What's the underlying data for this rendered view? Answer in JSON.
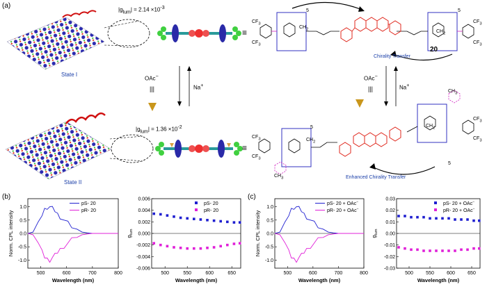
{
  "panels": {
    "a": "(a)",
    "b": "(b)",
    "c": "(c)"
  },
  "panel_a": {
    "state1_label": "State I",
    "state2_label": "State II",
    "g1_label": "|g",
    "g1_sub": "lum",
    "g1_value": "| = 2.14 ×10",
    "g1_exp": "-3",
    "g2_label": "|g",
    "g2_sub": "lum",
    "g2_value": "| = 1.36 ×10",
    "g2_exp": "-2",
    "oac_left": "OAc",
    "na_left": "Na",
    "oac_right": "OAc",
    "na_right": "Na",
    "equiv": "≡",
    "chirality_transfer": "Chirality Transfer",
    "enhanced_chirality_transfer": "Enhanced Chirality Transfer",
    "compound_number": "20",
    "ch2": "CH",
    "cf3": "CF",
    "ch3": "CH",
    "five": "5"
  },
  "chart_data": [
    {
      "type": "line",
      "xlabel": "Wavelength (nm)",
      "ylabel": "Norm. CPL intensity",
      "xlim": [
        450,
        800
      ],
      "ylim": [
        -1.3,
        1.3
      ],
      "xticks": [
        500,
        600,
        700,
        800
      ],
      "yticks": [
        -1.0,
        -0.5,
        0.0,
        0.5,
        1.0
      ],
      "ytick_labels": [
        "-1.0",
        "-0.5",
        "0.0",
        "0.5",
        "1.0"
      ],
      "legend": "top-right",
      "series": [
        {
          "name": "pS- 20",
          "color": "#1f1fd0",
          "x": [
            450,
            470,
            490,
            505,
            515,
            525,
            535,
            545,
            555,
            565,
            575,
            590,
            605,
            620,
            640,
            660,
            680,
            700,
            720,
            800
          ],
          "y": [
            0,
            0.05,
            0.35,
            0.7,
            0.9,
            0.98,
            1.0,
            0.93,
            0.85,
            0.72,
            0.62,
            0.5,
            0.38,
            0.25,
            0.12,
            0.05,
            0.02,
            0,
            0,
            0
          ]
        },
        {
          "name": "pR- 20",
          "color": "#e020d8",
          "x": [
            450,
            470,
            490,
            505,
            515,
            525,
            535,
            545,
            555,
            565,
            575,
            590,
            605,
            620,
            640,
            660,
            680,
            700,
            720,
            800
          ],
          "y": [
            0,
            -0.05,
            -0.35,
            -0.7,
            -0.88,
            -0.96,
            -1.0,
            -0.9,
            -0.82,
            -0.7,
            -0.6,
            -0.48,
            -0.36,
            -0.24,
            -0.11,
            -0.05,
            -0.02,
            0,
            0,
            0
          ]
        }
      ]
    },
    {
      "type": "scatter",
      "xlabel": "Wavelength (nm)",
      "ylabel": "g",
      "ylabel_sub": "lum",
      "xlim": [
        470,
        670
      ],
      "ylim": [
        -0.006,
        0.006
      ],
      "xticks": [
        500,
        550,
        600,
        650
      ],
      "yticks": [
        -0.006,
        -0.004,
        -0.002,
        0.0,
        0.002,
        0.004,
        0.006
      ],
      "ytick_labels": [
        "-0.006",
        "-0.004",
        "-0.002",
        "0.000",
        "0.002",
        "0.004",
        "0.006"
      ],
      "legend": "top-right",
      "series": [
        {
          "name": "pS- 20",
          "color": "#1f1fd0",
          "x": [
            475,
            490,
            505,
            520,
            535,
            550,
            565,
            580,
            595,
            610,
            625,
            640,
            655,
            668
          ],
          "y": [
            0.0034,
            0.0033,
            0.0031,
            0.0029,
            0.0027,
            0.0026,
            0.0025,
            0.0024,
            0.0023,
            0.0022,
            0.0021,
            0.002,
            0.0019,
            0.0019
          ]
        },
        {
          "name": "pR- 20",
          "color": "#e020d8",
          "x": [
            475,
            490,
            505,
            520,
            535,
            550,
            565,
            580,
            595,
            610,
            625,
            640,
            655,
            668
          ],
          "y": [
            -0.0017,
            -0.002,
            -0.0022,
            -0.0024,
            -0.0025,
            -0.0026,
            -0.0026,
            -0.0026,
            -0.0025,
            -0.0024,
            -0.0022,
            -0.002,
            -0.0018,
            -0.0017
          ]
        }
      ]
    },
    {
      "type": "line",
      "xlabel": "Wavelength (nm)",
      "ylabel": "Norm. CPL intensity",
      "xlim": [
        450,
        800
      ],
      "ylim": [
        -1.3,
        1.3
      ],
      "xticks": [
        500,
        600,
        700,
        800
      ],
      "yticks": [
        -1.0,
        -0.5,
        0.0,
        0.5,
        1.0
      ],
      "ytick_labels": [
        "-1.0",
        "-0.5",
        "0.0",
        "0.5",
        "1.0"
      ],
      "legend": "top-right",
      "series": [
        {
          "name": "pS- 20 + OAc",
          "color": "#1f1fd0",
          "x": [
            450,
            470,
            490,
            505,
            515,
            525,
            535,
            545,
            555,
            565,
            575,
            590,
            605,
            620,
            640,
            660,
            680,
            700,
            720,
            800
          ],
          "y": [
            0,
            0.05,
            0.35,
            0.7,
            0.9,
            0.98,
            1.0,
            0.93,
            0.85,
            0.72,
            0.62,
            0.5,
            0.38,
            0.25,
            0.12,
            0.05,
            0.02,
            0,
            0,
            0
          ]
        },
        {
          "name": "pR- 20 + OAc",
          "color": "#e020d8",
          "x": [
            450,
            470,
            490,
            505,
            515,
            525,
            535,
            545,
            555,
            565,
            575,
            590,
            605,
            620,
            640,
            660,
            680,
            700,
            720,
            800
          ],
          "y": [
            0,
            -0.05,
            -0.35,
            -0.7,
            -0.88,
            -0.96,
            -1.0,
            -0.9,
            -0.82,
            -0.7,
            -0.6,
            -0.48,
            -0.36,
            -0.24,
            -0.11,
            -0.05,
            -0.02,
            0,
            0,
            0
          ]
        }
      ]
    },
    {
      "type": "scatter",
      "xlabel": "Wavelength (nm)",
      "ylabel": "g",
      "ylabel_sub": "lum",
      "xlim": [
        470,
        670
      ],
      "ylim": [
        -0.03,
        0.03
      ],
      "xticks": [
        500,
        550,
        600,
        650
      ],
      "yticks": [
        -0.03,
        -0.02,
        -0.01,
        0.0,
        0.01,
        0.02,
        0.03
      ],
      "ytick_labels": [
        "-0.03",
        "-0.02",
        "-0.01",
        "0.00",
        "0.01",
        "0.02",
        "0.03"
      ],
      "legend": "top-right",
      "series": [
        {
          "name": "pS- 20 + OAc",
          "color": "#1f1fd0",
          "x": [
            475,
            490,
            505,
            520,
            535,
            550,
            565,
            580,
            595,
            610,
            625,
            640,
            655,
            668
          ],
          "y": [
            0.015,
            0.015,
            0.014,
            0.014,
            0.014,
            0.013,
            0.013,
            0.013,
            0.013,
            0.012,
            0.012,
            0.012,
            0.011,
            0.011
          ]
        },
        {
          "name": "pR- 20 + OAc",
          "color": "#e020d8",
          "x": [
            475,
            490,
            505,
            520,
            535,
            550,
            565,
            580,
            595,
            610,
            625,
            640,
            655,
            668
          ],
          "y": [
            -0.012,
            -0.013,
            -0.014,
            -0.014,
            -0.015,
            -0.015,
            -0.015,
            -0.015,
            -0.015,
            -0.015,
            -0.014,
            -0.014,
            -0.013,
            -0.013
          ]
        }
      ]
    }
  ]
}
